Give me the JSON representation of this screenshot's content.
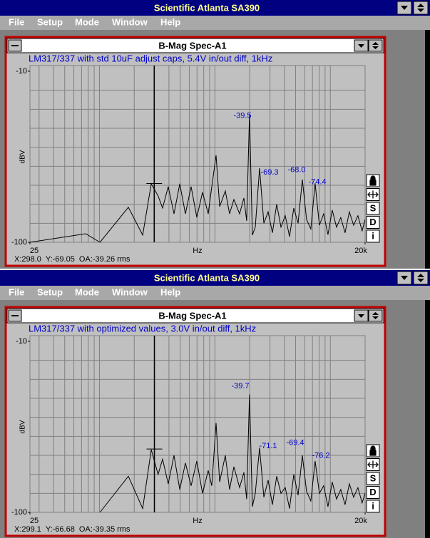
{
  "windows": [
    {
      "app_title": "Scientific Atlanta SA390",
      "menu": [
        "File",
        "Setup",
        "Mode",
        "Window",
        "Help"
      ],
      "child_title": "B-Mag Spec-A1",
      "plot": {
        "title": "LM317/337 with std 10uF adjust caps, 5.4V in/out diff, 1kHz",
        "y_label": "dBV",
        "x_label": "Hz",
        "x_scale": "log",
        "grid": true,
        "xlim": [
          25,
          20000
        ],
        "ylim": [
          -100,
          -10
        ],
        "xticks": [
          25,
          {
            "value": 20000,
            "label": "20k"
          }
        ],
        "yticks": [
          -100,
          -10
        ],
        "cursor": {
          "x": 298.0,
          "y": -69.05
        },
        "trace": {
          "x": [
            25,
            76,
            101,
            178,
            237,
            281,
            322,
            352,
            394,
            442,
            496,
            555,
            622,
            697,
            781,
            875,
            940,
            1024,
            1099,
            1231,
            1340,
            1460,
            1636,
            1783,
            1885,
            1995,
            2110,
            2238,
            2437,
            2655,
            2891,
            3148,
            3428,
            3733,
            4065,
            4427,
            4821,
            5250,
            5717,
            6225,
            6779,
            7382,
            8039,
            8754,
            9533,
            10381,
            11305,
            12311,
            13406,
            14599,
            15898,
            17312,
            18852,
            20000
          ],
          "y": [
            -100,
            -95.5,
            -100,
            -81.6,
            -96.2,
            -69.2,
            -75.6,
            -82,
            -70.7,
            -85,
            -69.2,
            -85,
            -70.7,
            -86.9,
            -73.7,
            -85,
            -70.7,
            -54.2,
            -81.2,
            -73,
            -85,
            -77.5,
            -85,
            -76.7,
            -88.7,
            -32.5,
            -96.2,
            -92,
            -61,
            -90,
            -84,
            -95,
            -80,
            -92,
            -86,
            -97,
            -82,
            -90,
            -67,
            -88,
            -93,
            -69,
            -91,
            -85,
            -96,
            -83,
            -92,
            -87,
            -95,
            -84,
            -91,
            -86,
            -94,
            -88
          ]
        },
        "peak_labels": [
          -39.5,
          -69.3,
          {
            "value": -68,
            "label": "-68.0"
          },
          -74.4
        ]
      },
      "side_buttons": [
        "S",
        "D",
        "i"
      ],
      "status": "X:298.0  Y:-69.05  OA:-39.26 rms"
    },
    {
      "app_title": "Scientific Atlanta SA390",
      "menu": [
        "File",
        "Setup",
        "Mode",
        "Window",
        "Help"
      ],
      "child_title": "B-Mag Spec-A1",
      "plot": {
        "title": "LM317/337 with optimized values, 3.0V in/out diff, 1kHz",
        "y_label": "dBV",
        "x_label": "Hz",
        "x_scale": "log",
        "grid": true,
        "xlim": [
          25,
          20000
        ],
        "ylim": [
          -100,
          -10
        ],
        "xticks": [
          25,
          {
            "value": 20000,
            "label": "20k"
          }
        ],
        "yticks": [
          -100,
          -10
        ],
        "cursor": {
          "x": 299.1,
          "y": -66.68
        },
        "trace": {
          "x": [
            25,
            76,
            101,
            178,
            237,
            281,
            322,
            352,
            394,
            442,
            496,
            555,
            622,
            697,
            781,
            875,
            940,
            1024,
            1099,
            1231,
            1340,
            1460,
            1636,
            1783,
            1885,
            1995,
            2110,
            2238,
            2437,
            2655,
            2891,
            3148,
            3428,
            3733,
            4065,
            4427,
            4821,
            5250,
            5717,
            6225,
            6779,
            7382,
            8039,
            8754,
            9533,
            10381,
            11305,
            12311,
            13406,
            14599,
            15898,
            17312,
            18852,
            20000
          ],
          "y": [
            null,
            null,
            -100,
            -81,
            -98,
            -67,
            -80,
            -72,
            -85,
            -70,
            -88,
            -74,
            -86,
            -73,
            -90,
            -78,
            -86,
            -53,
            -84,
            -70,
            -88,
            -76,
            -87,
            -79,
            -93,
            -38,
            -97,
            -90,
            -66,
            -92,
            -83,
            -96,
            -81,
            -90,
            -87,
            -98,
            -80,
            -91,
            -70,
            -89,
            -94,
            -73,
            -90,
            -86,
            -97,
            -84,
            -93,
            -88,
            -96,
            -85,
            -92,
            -87,
            -95,
            -90
          ]
        },
        "peak_labels": [
          -39.7,
          -71.1,
          -69.4,
          -76.2
        ]
      },
      "side_buttons": [
        "S",
        "D",
        "i"
      ],
      "status": "X:299.1  Y:-66.68  OA:-39.35 rms"
    }
  ]
}
